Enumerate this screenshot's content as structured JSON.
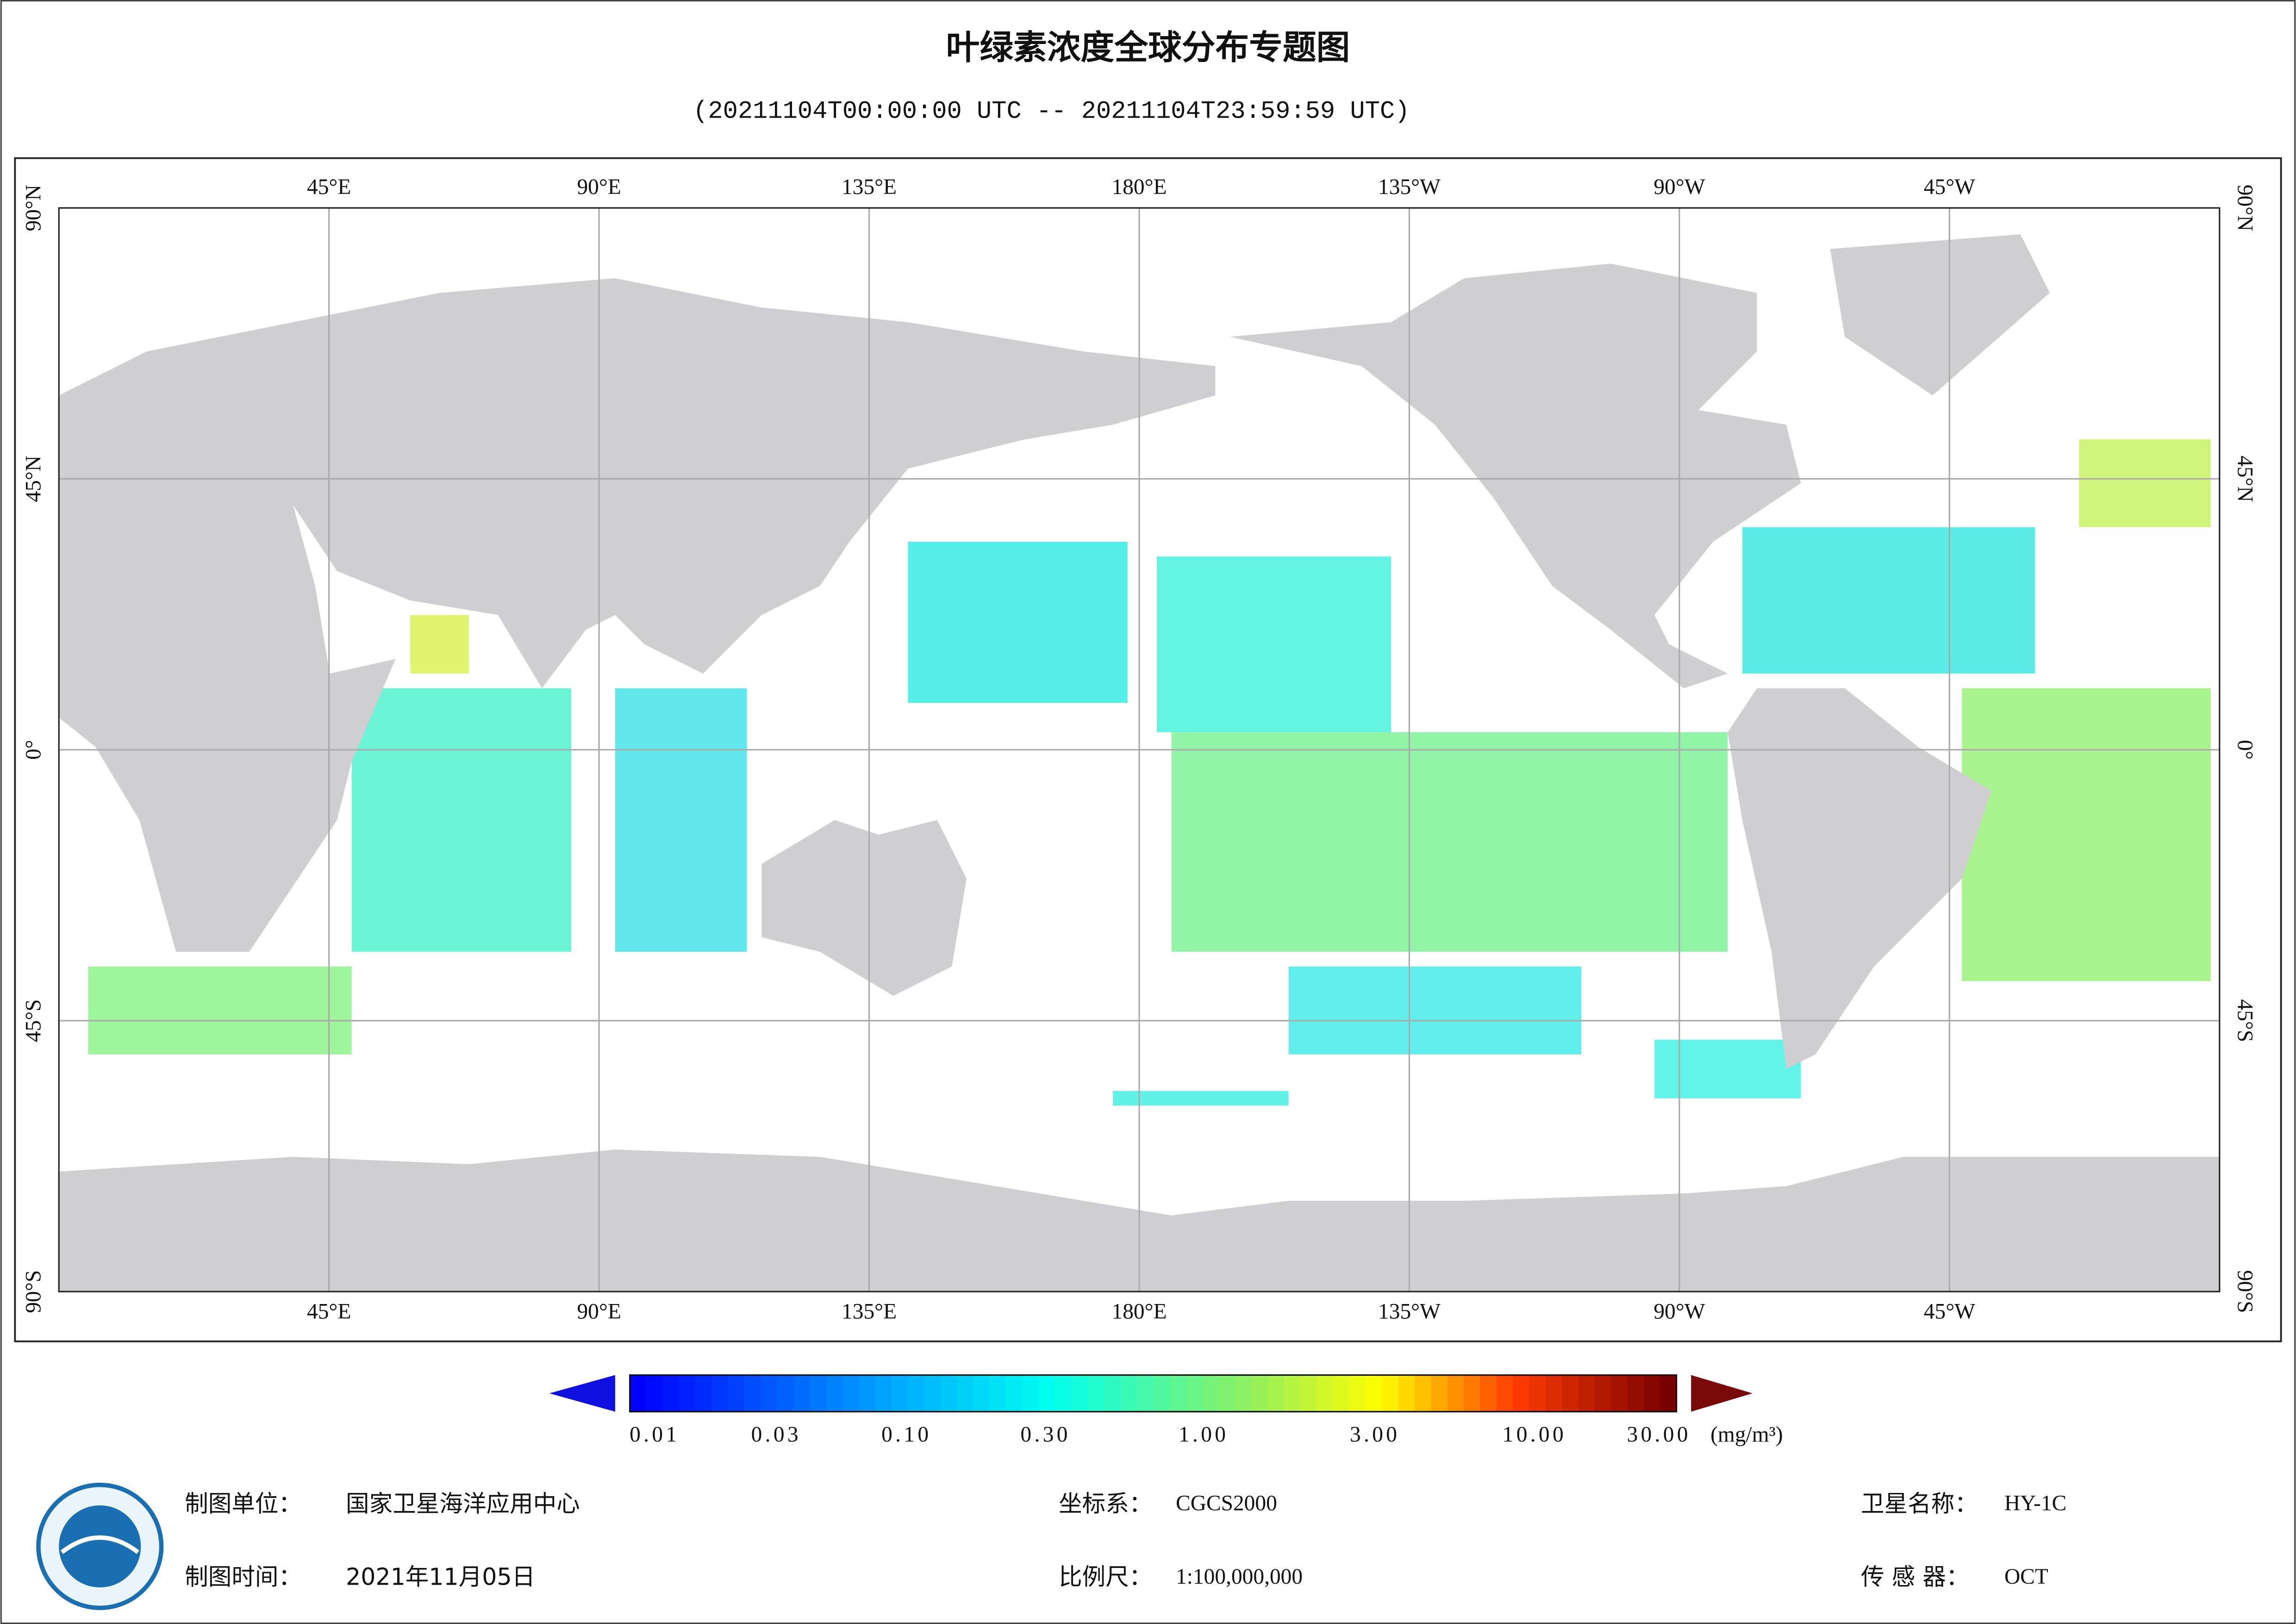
{
  "header": {
    "title": "叶绿素浓度全球分布专题图",
    "subtitle": "(20211104T00:00:00 UTC -- 20211104T23:59:59 UTC)"
  },
  "map": {
    "lon_labels": [
      "45°E",
      "90°E",
      "135°E",
      "180°E",
      "135°W",
      "90°W",
      "45°W"
    ],
    "lat_labels": [
      "90°N",
      "45°N",
      "0°",
      "45°S",
      "90°S"
    ]
  },
  "colorbar": {
    "ticks": [
      "0.01",
      "0.03",
      "0.10",
      "0.30",
      "1.00",
      "3.00",
      "10.00",
      "30.00"
    ],
    "unit": "(mg/m³)"
  },
  "footer": {
    "fields": [
      {
        "label": "制图单位：",
        "value": "国家卫星海洋应用中心"
      },
      {
        "label": "制图时间：",
        "value": "2021年11月05日"
      },
      {
        "label": "坐标系：",
        "value": "CGCS2000"
      },
      {
        "label": "比例尺：",
        "value": "1:100,000,000"
      },
      {
        "label": "卫星名称：",
        "value": "HY-1C"
      },
      {
        "label": "传 感 器：",
        "value": "OCT"
      }
    ]
  }
}
